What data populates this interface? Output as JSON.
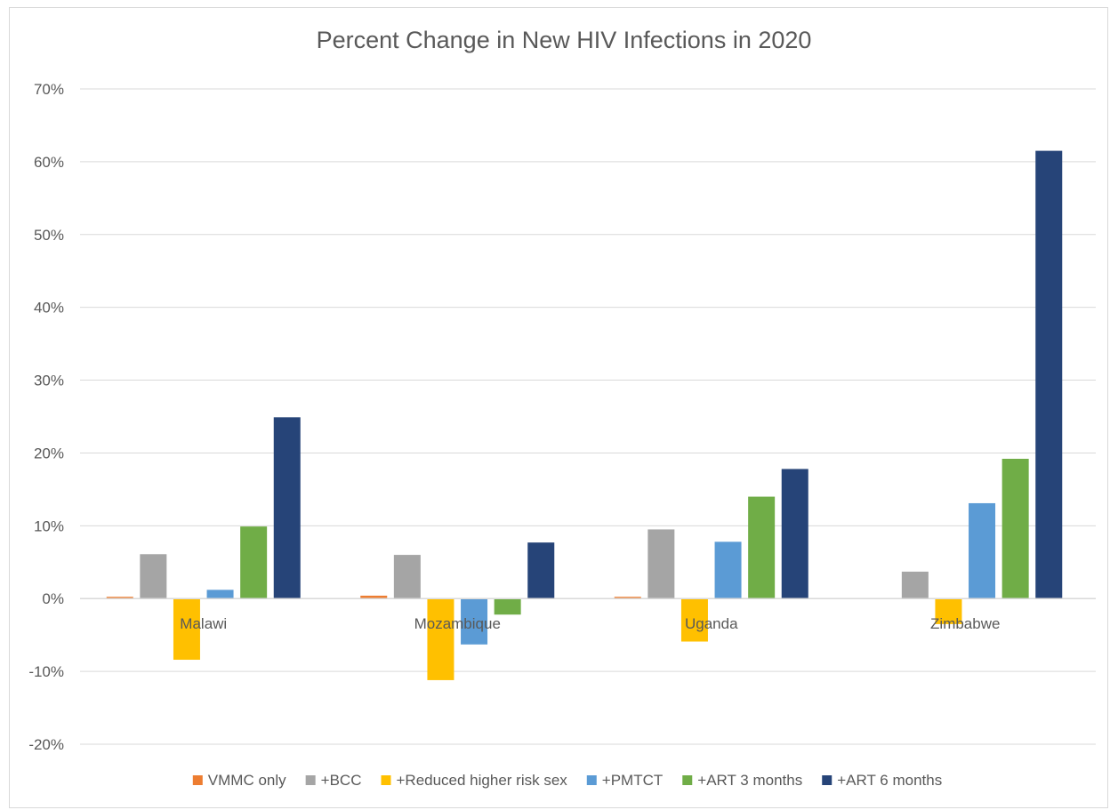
{
  "chart_data": {
    "type": "bar",
    "title": "Percent Change in New HIV Infections in 2020",
    "xlabel": "",
    "ylabel": "",
    "categories": [
      "Malawi",
      "Mozambique",
      "Uganda",
      "Zimbabwe"
    ],
    "ylim": [
      -20,
      70
    ],
    "yticks": [
      -20,
      -10,
      0,
      10,
      20,
      30,
      40,
      50,
      60,
      70
    ],
    "ytick_labels": [
      "-20%",
      "-10%",
      "0%",
      "10%",
      "20%",
      "30%",
      "40%",
      "50%",
      "60%",
      "70%"
    ],
    "grid": true,
    "legend_position": "bottom",
    "series": [
      {
        "name": "VMMC only",
        "color": "#ed7d31",
        "values": [
          0.2,
          0.4,
          0.2,
          0.0
        ]
      },
      {
        "name": "+BCC",
        "color": "#a5a5a5",
        "values": [
          6.1,
          6.0,
          9.5,
          3.7
        ]
      },
      {
        "name": "+Reduced higher risk sex",
        "color": "#ffc000",
        "values": [
          -8.4,
          -11.2,
          -5.9,
          -3.5
        ]
      },
      {
        "name": "+PMTCT",
        "color": "#5b9bd5",
        "values": [
          1.2,
          -6.3,
          7.8,
          13.1
        ]
      },
      {
        "name": "+ART 3 months",
        "color": "#70ad47",
        "values": [
          9.9,
          -2.2,
          14.0,
          19.2
        ]
      },
      {
        "name": "+ART 6 months",
        "color": "#264478",
        "values": [
          24.9,
          7.7,
          17.8,
          61.5
        ]
      }
    ]
  }
}
